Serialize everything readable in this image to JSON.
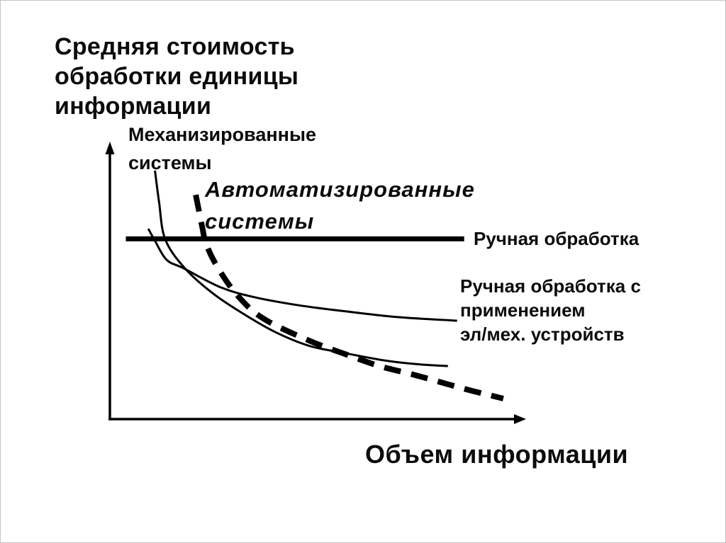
{
  "page": {
    "background": "#ffffff",
    "border_color": "#c4c4c4",
    "ink_color": "#000000"
  },
  "title": {
    "lines": [
      "Средняя стоимость",
      "обработки единицы",
      "информации"
    ]
  },
  "labels": {
    "mechanized": {
      "lines": [
        "Механизированные",
        "системы"
      ]
    },
    "automated": {
      "lines": [
        "Автоматизированные",
        "системы"
      ]
    },
    "manual": {
      "lines": [
        "Ручная обработка"
      ]
    },
    "manual_elmech": {
      "lines": [
        "Ручная обработка с",
        "применением",
        "эл/мех. устройств"
      ]
    },
    "x_axis": {
      "lines": [
        "Объем информации"
      ]
    }
  },
  "chart_data": {
    "type": "line",
    "title": "Средняя стоимость обработки единицы информации",
    "xlabel": "Объем информации",
    "ylabel": "Средняя стоимость обработки единицы информации",
    "axes": {
      "x_range": [
        0,
        100
      ],
      "y_range": [
        0,
        100
      ],
      "units": "relative; qualitative diagram without numeric ticks",
      "grid": false,
      "arrows": true
    },
    "legend_position": "labels placed next to curves",
    "series": [
      {
        "id": "manual",
        "name": "Ручная обработка",
        "line_style": "solid-thick-horizontal",
        "stroke_width": 7,
        "dash": null,
        "points": [
          {
            "x": 4.0,
            "y": 65.7
          },
          {
            "x": 85.3,
            "y": 65.7
          }
        ]
      },
      {
        "id": "elmech",
        "name": "Ручная обработка с применением эл/мех. устройств",
        "line_style": "solid-thin",
        "stroke_width": 3,
        "dash": null,
        "points": [
          {
            "x": 9.4,
            "y": 69.4
          },
          {
            "x": 11.0,
            "y": 65.0
          },
          {
            "x": 13.8,
            "y": 58.1
          },
          {
            "x": 17.9,
            "y": 55.0
          },
          {
            "x": 26.8,
            "y": 48.1
          },
          {
            "x": 35.0,
            "y": 44.5
          },
          {
            "x": 45.5,
            "y": 41.6
          },
          {
            "x": 55.7,
            "y": 39.6
          },
          {
            "x": 69.3,
            "y": 37.3
          },
          {
            "x": 83.6,
            "y": 36.0
          }
        ]
      },
      {
        "id": "mechanized",
        "name": "Механизированные системы",
        "line_style": "solid-thin",
        "stroke_width": 3,
        "dash": null,
        "points": [
          {
            "x": 11.0,
            "y": 90.5
          },
          {
            "x": 12.0,
            "y": 79.0
          },
          {
            "x": 13.4,
            "y": 65.8
          },
          {
            "x": 17.9,
            "y": 55.5
          },
          {
            "x": 25.0,
            "y": 45.8
          },
          {
            "x": 33.0,
            "y": 37.8
          },
          {
            "x": 40.0,
            "y": 31.8
          },
          {
            "x": 48.0,
            "y": 26.9
          },
          {
            "x": 56.0,
            "y": 24.4
          },
          {
            "x": 66.0,
            "y": 21.6
          },
          {
            "x": 74.0,
            "y": 20.2
          },
          {
            "x": 81.4,
            "y": 19.5
          }
        ]
      },
      {
        "id": "automated",
        "name": "Автоматизированные системы",
        "line_style": "dashed-thick",
        "stroke_width": 8,
        "dash": "24 15",
        "points": [
          {
            "x": 20.8,
            "y": 81.7
          },
          {
            "x": 22.4,
            "y": 69.7
          },
          {
            "x": 23.3,
            "y": 63.8
          },
          {
            "x": 26.0,
            "y": 55.5
          },
          {
            "x": 30.8,
            "y": 45.2
          },
          {
            "x": 37.0,
            "y": 36.8
          },
          {
            "x": 48.0,
            "y": 28.8
          },
          {
            "x": 57.0,
            "y": 23.7
          },
          {
            "x": 65.0,
            "y": 19.5
          },
          {
            "x": 73.6,
            "y": 16.2
          },
          {
            "x": 85.0,
            "y": 11.4
          },
          {
            "x": 94.7,
            "y": 7.7
          }
        ]
      }
    ]
  }
}
